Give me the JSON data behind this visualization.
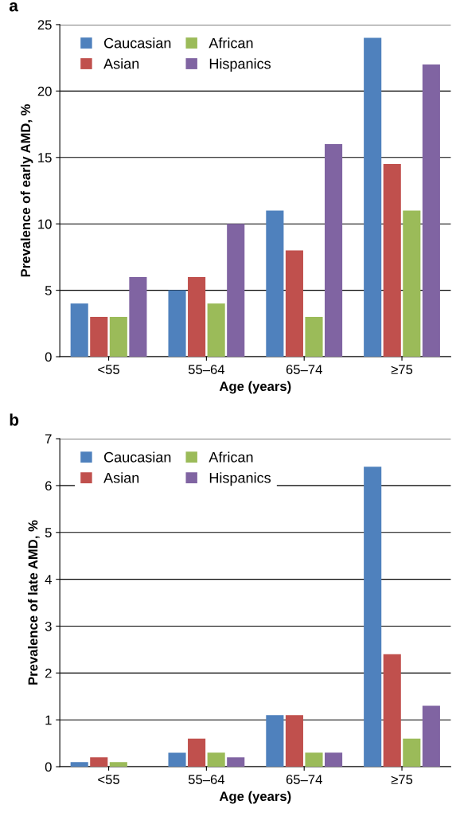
{
  "chart_data": [
    {
      "type": "bar",
      "annotations": [
        "a"
      ],
      "xlabel": "Age (years)",
      "ylabel": "Prevalence of early AMD, %",
      "categories": [
        "<55",
        "55–64",
        "65–74",
        "≥75"
      ],
      "ylim": [
        0,
        25
      ],
      "yticks": [
        0,
        5,
        10,
        15,
        20,
        25
      ],
      "grid": "y",
      "legend": "top left",
      "series": [
        {
          "name": "Caucasian",
          "color": "#4f81bd",
          "values": [
            4,
            5,
            11,
            24
          ]
        },
        {
          "name": "Asian",
          "color": "#c0504d",
          "values": [
            3,
            6,
            8,
            14.5
          ]
        },
        {
          "name": "African",
          "color": "#9bbb59",
          "values": [
            3,
            4,
            3,
            11
          ]
        },
        {
          "name": "Hispanics",
          "color": "#8064a2",
          "values": [
            6,
            10,
            16,
            22
          ]
        }
      ]
    },
    {
      "type": "bar",
      "annotations": [
        "b"
      ],
      "xlabel": "Age (years)",
      "ylabel": "Prevalence of late AMD, %",
      "categories": [
        "<55",
        "55–64",
        "65–74",
        "≥75"
      ],
      "ylim": [
        0,
        7
      ],
      "yticks": [
        0,
        1,
        2,
        3,
        4,
        5,
        6,
        7
      ],
      "grid": "y",
      "legend": "top left",
      "series": [
        {
          "name": "Caucasian",
          "color": "#4f81bd",
          "values": [
            0.1,
            0.3,
            1.1,
            6.4
          ]
        },
        {
          "name": "Asian",
          "color": "#c0504d",
          "values": [
            0.2,
            0.6,
            1.1,
            2.4
          ]
        },
        {
          "name": "African",
          "color": "#9bbb59",
          "values": [
            0.1,
            0.3,
            0.3,
            0.6
          ]
        },
        {
          "name": "Hispanics",
          "color": "#8064a2",
          "values": [
            0.0,
            0.2,
            0.3,
            1.3
          ]
        }
      ]
    }
  ]
}
